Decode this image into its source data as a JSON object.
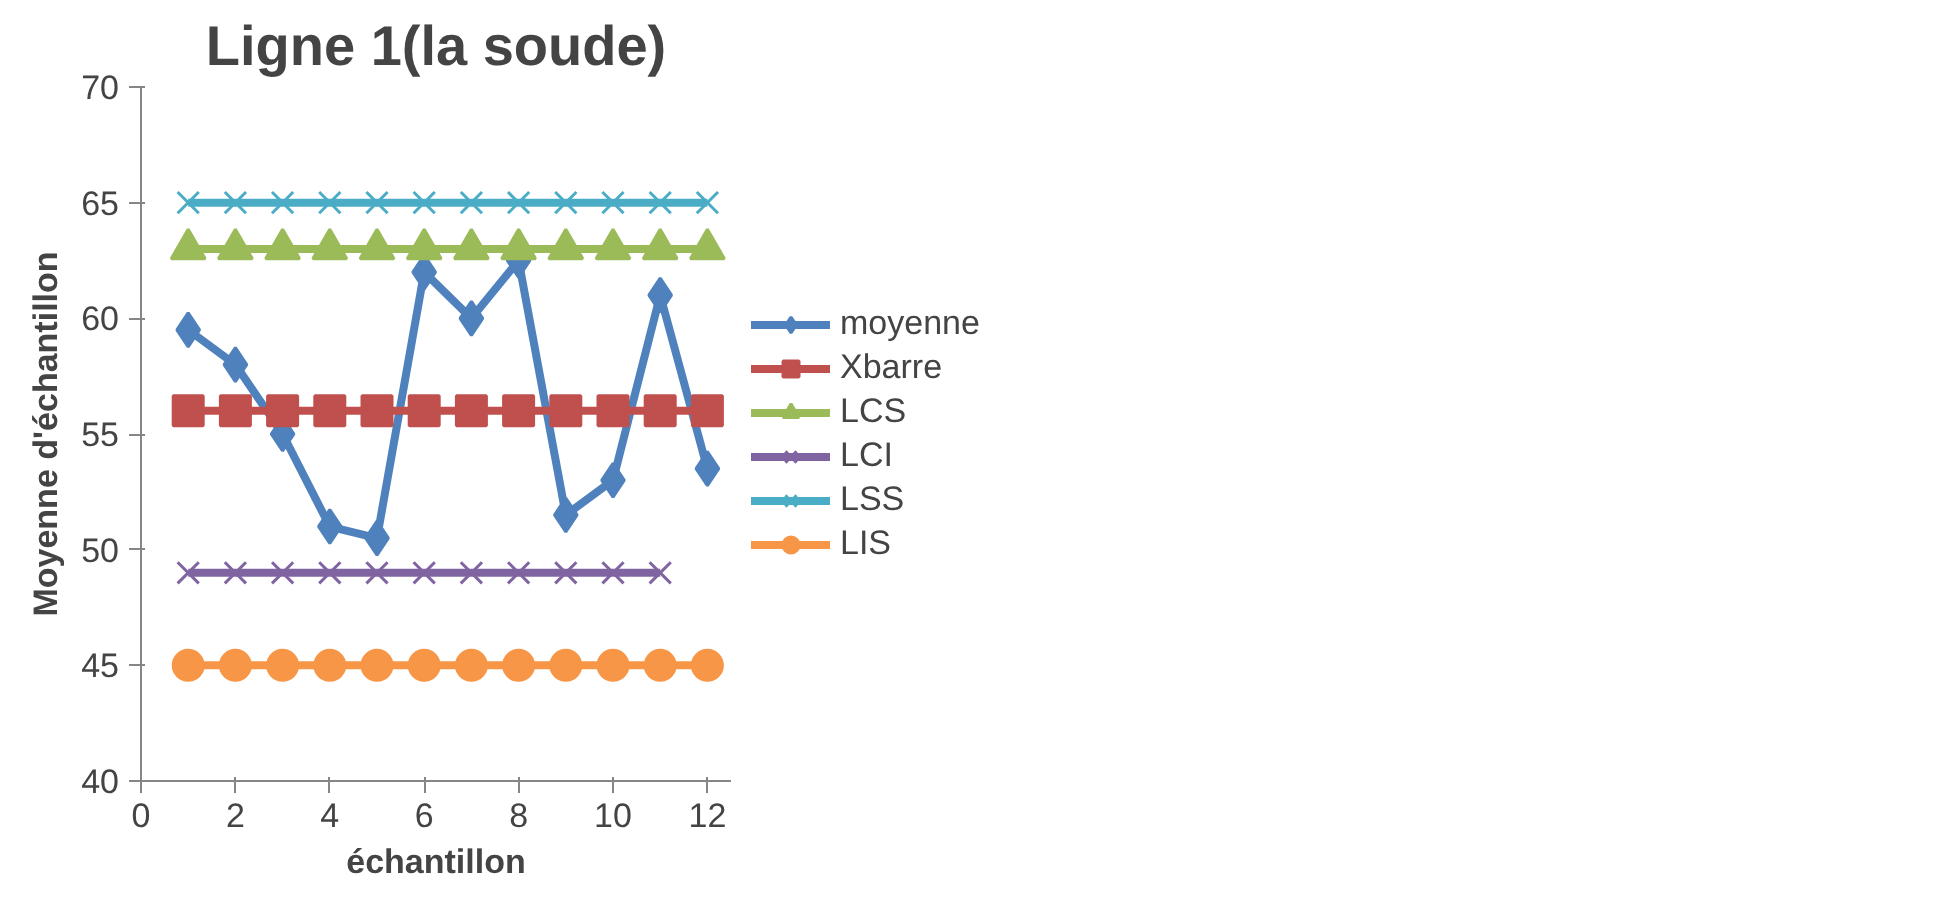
{
  "chart_data": {
    "type": "line",
    "title": "Ligne 1(la soude)",
    "xlabel": "échantillon",
    "ylabel": "Moyenne d'échantillon",
    "x": [
      1,
      2,
      3,
      4,
      5,
      6,
      7,
      8,
      9,
      10,
      11,
      12
    ],
    "xlim": [
      0,
      12.5
    ],
    "xticks": [
      0,
      2,
      4,
      6,
      8,
      10,
      12
    ],
    "ylim": [
      40,
      70
    ],
    "yticks": [
      40,
      45,
      50,
      55,
      60,
      65,
      70
    ],
    "grid": false,
    "legend": "right",
    "line_style": "solid",
    "series": [
      {
        "name": "moyenne",
        "color": "#4f81bd",
        "marker": "diamond",
        "values": [
          59.5,
          58,
          55,
          51,
          50.5,
          62,
          60,
          62.5,
          51.5,
          53,
          61,
          53.5
        ]
      },
      {
        "name": "Xbarre",
        "color": "#c0504d",
        "marker": "square",
        "values": [
          56,
          56,
          56,
          56,
          56,
          56,
          56,
          56,
          56,
          56,
          56,
          56
        ]
      },
      {
        "name": "LCS",
        "color": "#9bbb59",
        "marker": "triangle",
        "values": [
          63,
          63,
          63,
          63,
          63,
          63,
          63,
          63,
          63,
          63,
          63,
          63
        ]
      },
      {
        "name": "LCI",
        "color": "#8064a2",
        "marker": "cross",
        "values": [
          49,
          49,
          49,
          49,
          49,
          49,
          49,
          49,
          49,
          49,
          49,
          null
        ]
      },
      {
        "name": "LSS",
        "color": "#4bacc6",
        "marker": "cross",
        "values": [
          65,
          65,
          65,
          65,
          65,
          65,
          65,
          65,
          65,
          65,
          65,
          65
        ]
      },
      {
        "name": "LIS",
        "color": "#f79646",
        "marker": "circle",
        "values": [
          45,
          45,
          45,
          45,
          45,
          45,
          45,
          45,
          45,
          45,
          45,
          45
        ]
      }
    ]
  }
}
